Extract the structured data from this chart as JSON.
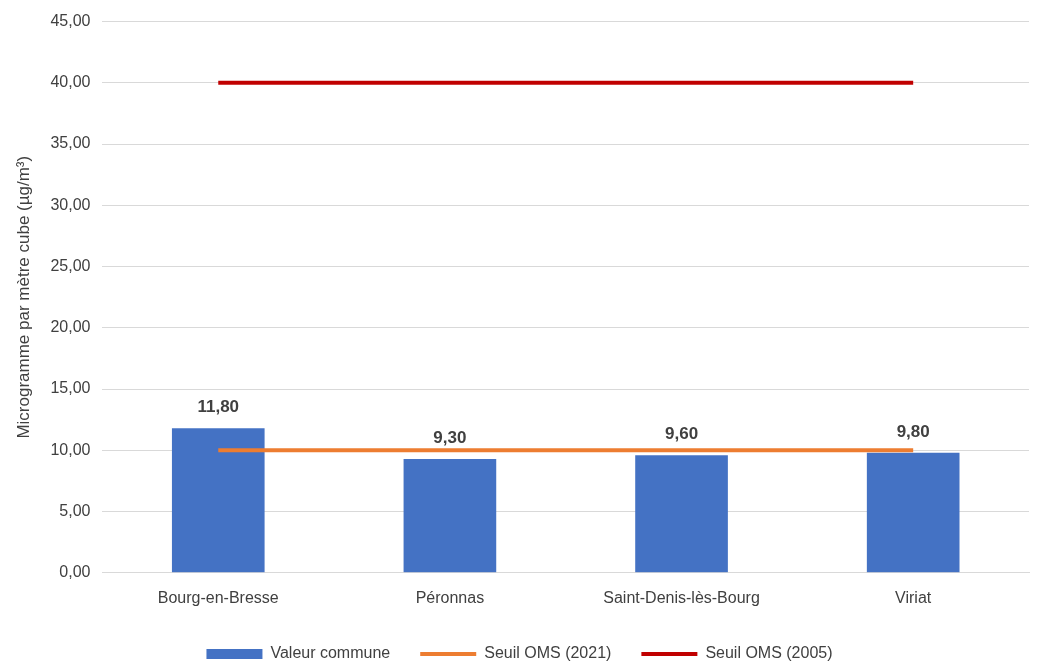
{
  "chart_data": {
    "type": "bar",
    "ylabel": "Microgramme par mètre cube (µg/m³)",
    "categories": [
      "Bourg-en-Bresse",
      "Péronnas",
      "Saint-Denis-lès-Bourg",
      "Viriat"
    ],
    "series": [
      {
        "name": "Valeur commune",
        "color": "#4472c4",
        "values": [
          11.8,
          9.3,
          9.6,
          9.8
        ],
        "value_labels": [
          "11,80",
          "9,30",
          "9,60",
          "9,80"
        ]
      },
      {
        "name": "Seuil OMS (2021)",
        "type": "line",
        "color": "#ed7d31",
        "values": [
          10,
          10,
          10,
          10
        ]
      },
      {
        "name": "Seuil OMS (2005)",
        "type": "line",
        "color": "#c00000",
        "values": [
          40,
          40,
          40,
          40
        ]
      }
    ],
    "ylim": [
      0,
      45
    ],
    "yticks": [
      {
        "value": 0,
        "label": "0,00"
      },
      {
        "value": 5,
        "label": "5,00"
      },
      {
        "value": 10,
        "label": "10,00"
      },
      {
        "value": 15,
        "label": "15,00"
      },
      {
        "value": 20,
        "label": "20,00"
      },
      {
        "value": 25,
        "label": "25,00"
      },
      {
        "value": 30,
        "label": "30,00"
      },
      {
        "value": 35,
        "label": "35,00"
      },
      {
        "value": 40,
        "label": "40,00"
      },
      {
        "value": 45,
        "label": "45,00"
      }
    ],
    "grid": "y",
    "legend": "bottom",
    "marker": "none"
  }
}
